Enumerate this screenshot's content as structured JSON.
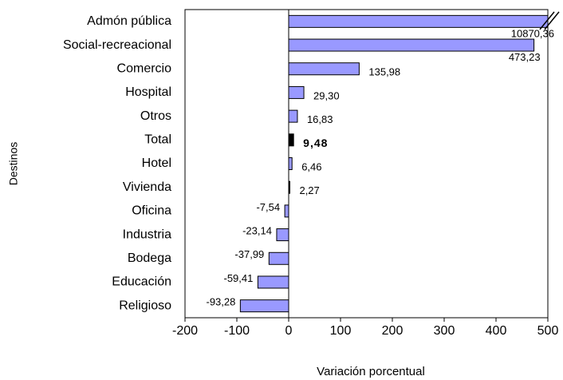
{
  "chart_data": {
    "type": "bar",
    "orientation": "horizontal",
    "xlabel": "Variación porcentual",
    "ylabel": "Destinos",
    "categories": [
      "Admón pública",
      "Social-recreacional",
      "Comercio",
      "Hospital",
      "Otros",
      "Total",
      "Hotel",
      "Vivienda",
      "Oficina",
      "Industria",
      "Bodega",
      "Educación",
      "Religioso"
    ],
    "values": [
      10870.36,
      473.23,
      135.98,
      29.3,
      16.83,
      9.48,
      6.46,
      2.27,
      -7.54,
      -23.14,
      -37.99,
      -59.41,
      -93.28
    ],
    "value_labels": [
      "10870,36",
      "473,23",
      "135,98",
      "29,30",
      "16,83",
      "9,48",
      "6,46",
      "2,27",
      "-7,54",
      "-23,14",
      "-37,99",
      "-59,41",
      "-93,28"
    ],
    "colors": [
      "#9999ff",
      "#9999ff",
      "#9999ff",
      "#9999ff",
      "#9999ff",
      "#000000",
      "#9999ff",
      "#000000",
      "#9999ff",
      "#9999ff",
      "#9999ff",
      "#9999ff",
      "#9999ff"
    ],
    "xlim": [
      -200,
      500
    ],
    "xticks": [
      -200,
      -100,
      0,
      100,
      200,
      300,
      400,
      500
    ],
    "grid": false
  }
}
